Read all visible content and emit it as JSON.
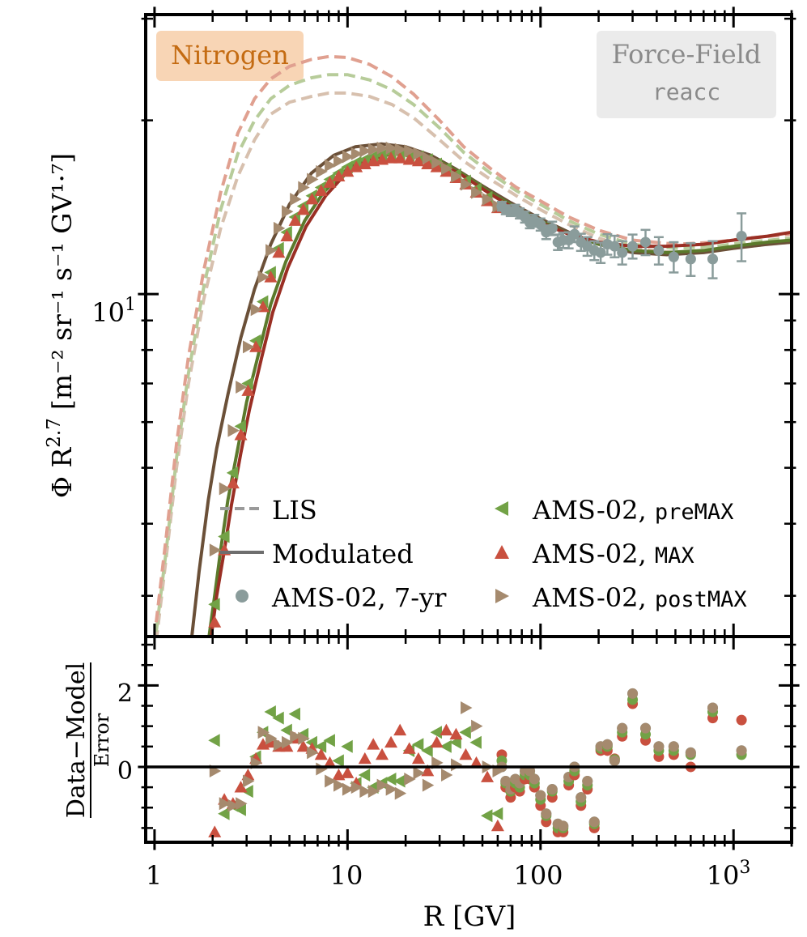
{
  "chart_data": {
    "type": "scatter",
    "element_label": "Nitrogen",
    "model_label": "Force-Field",
    "model_variant": "reacc",
    "upper_panel": {
      "ylabel_main": "Φ R",
      "ylabel_exp": "2.7",
      "ylabel_units": "[m⁻² sr⁻¹ s⁻¹ GV¹·⁷]",
      "yscale": "log",
      "ylim": [
        2.55,
        30.5
      ],
      "ytick_base": "10",
      "ytick_exp": "1"
    },
    "lower_panel": {
      "ylabel_numerator": "Data−Model",
      "ylabel_denominator": "Error",
      "ylim": [
        -1.85,
        3.2
      ],
      "yticks": [
        0,
        2
      ],
      "ytick_labels": [
        "0",
        "2"
      ]
    },
    "xaxis": {
      "xlabel": "R [GV]",
      "xscale": "log",
      "xlim": [
        0.9,
        2000
      ],
      "ticks": [
        {
          "value": 1,
          "label": "1"
        },
        {
          "value": 10,
          "label": "10"
        },
        {
          "value": 100,
          "label": "100"
        }
      ],
      "tick_1000_base": "10",
      "tick_1000_exp": "3"
    },
    "legend": {
      "location": "lower-center",
      "entries": [
        {
          "label": "LIS",
          "style": "dashed-line"
        },
        {
          "label": "Modulated",
          "style": "solid-line"
        },
        {
          "label": "AMS-02, 7-yr",
          "style": "circle"
        },
        {
          "label": "AMS-02, ",
          "mono": "preMAX",
          "style": "triangle-left"
        },
        {
          "label": "AMS-02, ",
          "mono": "MAX",
          "style": "triangle-up"
        },
        {
          "label": "AMS-02, ",
          "mono": "postMAX",
          "style": "triangle-right"
        }
      ]
    },
    "colors": {
      "sevenyr": "#8a9c9b",
      "premax": "#72a246",
      "max": "#c9503f",
      "postmax": "#a58a6e",
      "lis_premax": "#b7cc9a",
      "lis_max": "#e0a090",
      "lis_postmax": "#d7c0ae",
      "mod_premax": "#5b7a2c",
      "mod_max": "#9a2f24",
      "mod_postmax": "#6b5038",
      "element_box": "#f8d5b5",
      "element_text": "#c46b12",
      "model_box": "#ebebeb",
      "model_text": "#8a8a8a"
    },
    "series": [
      {
        "name": "LIS postMAX",
        "kind": "lis",
        "color_key": "lis_postmax",
        "x": [
          1.02,
          1.15,
          1.3,
          1.5,
          1.8,
          2.2,
          2.7,
          3.3,
          4.0,
          5.0,
          6.5,
          8.0,
          10,
          13,
          17,
          22,
          30,
          40,
          55,
          75,
          100,
          140,
          200,
          300,
          500,
          800,
          1200,
          2000
        ],
        "y": [
          2.5,
          3.5,
          5.0,
          7.0,
          9.8,
          13.0,
          16.0,
          18.5,
          20.5,
          21.5,
          22.0,
          22.3,
          22.3,
          22.0,
          21.3,
          20.2,
          18.5,
          17.0,
          15.8,
          14.8,
          14.0,
          13.2,
          12.5,
          12.0,
          11.8,
          11.9,
          12.1,
          12.3
        ]
      },
      {
        "name": "LIS preMAX",
        "kind": "lis",
        "color_key": "lis_premax",
        "x": [
          1.02,
          1.15,
          1.3,
          1.5,
          1.8,
          2.2,
          2.7,
          3.3,
          4.0,
          5.0,
          6.5,
          8.0,
          10,
          13,
          17,
          22,
          30,
          40,
          55,
          75,
          100,
          140,
          200,
          300,
          500,
          800,
          1200,
          2000
        ],
        "y": [
          2.6,
          3.6,
          5.2,
          7.3,
          10.3,
          14.0,
          17.5,
          20.0,
          21.8,
          23.0,
          23.7,
          24.0,
          24.0,
          23.5,
          22.6,
          21.3,
          19.4,
          17.6,
          16.2,
          15.1,
          14.3,
          13.4,
          12.7,
          12.2,
          12.0,
          12.1,
          12.3,
          12.5
        ]
      },
      {
        "name": "LIS MAX",
        "kind": "lis",
        "color_key": "lis_max",
        "x": [
          1.02,
          1.15,
          1.3,
          1.5,
          1.8,
          2.2,
          2.7,
          3.3,
          4.0,
          5.0,
          6.5,
          8.0,
          10,
          13,
          17,
          22,
          30,
          40,
          55,
          75,
          100,
          140,
          200,
          300,
          500,
          800,
          1200,
          2000
        ],
        "y": [
          2.7,
          3.8,
          5.5,
          7.8,
          11.0,
          15.0,
          19.0,
          21.8,
          23.6,
          24.8,
          25.5,
          25.8,
          25.7,
          25.0,
          23.8,
          22.2,
          20.0,
          18.0,
          16.5,
          15.3,
          14.5,
          13.6,
          12.9,
          12.4,
          12.2,
          12.3,
          12.5,
          12.7
        ]
      },
      {
        "name": "Modulated postMAX",
        "kind": "mod",
        "color_key": "mod_postmax",
        "x": [
          1.55,
          1.7,
          1.9,
          2.1,
          2.4,
          2.8,
          3.3,
          4.0,
          5.0,
          6.5,
          8.5,
          11,
          15,
          20,
          27,
          36,
          50,
          70,
          100,
          140,
          200,
          300,
          450,
          700,
          1000,
          1500,
          2000
        ],
        "y": [
          2.5,
          3.3,
          4.4,
          5.4,
          6.7,
          8.4,
          10.2,
          12.2,
          14.3,
          16.2,
          17.4,
          18.0,
          18.2,
          18.0,
          17.4,
          16.5,
          15.4,
          14.4,
          13.5,
          12.8,
          12.2,
          11.8,
          11.7,
          11.8,
          12.0,
          12.2,
          12.3
        ]
      },
      {
        "name": "Modulated preMAX",
        "kind": "mod",
        "color_key": "mod_premax",
        "x": [
          1.9,
          2.05,
          2.2,
          2.4,
          2.7,
          3.0,
          3.5,
          4.0,
          4.8,
          6.0,
          7.5,
          10,
          13,
          17,
          22,
          30,
          40,
          55,
          75,
          100,
          140,
          200,
          300,
          450,
          700,
          1000,
          1500,
          2000
        ],
        "y": [
          2.5,
          3.0,
          3.6,
          4.4,
          5.4,
          6.5,
          8.0,
          9.6,
          11.4,
          13.4,
          15.0,
          16.5,
          17.3,
          17.7,
          17.6,
          17.0,
          16.1,
          15.0,
          14.1,
          13.4,
          12.7,
          12.2,
          11.9,
          11.8,
          11.9,
          12.1,
          12.3,
          12.4
        ]
      },
      {
        "name": "Modulated MAX",
        "kind": "mod",
        "color_key": "mod_max",
        "x": [
          1.95,
          2.1,
          2.3,
          2.5,
          2.8,
          3.1,
          3.6,
          4.1,
          4.9,
          6.1,
          7.7,
          10,
          13,
          17,
          22,
          30,
          40,
          55,
          75,
          100,
          140,
          200,
          300,
          450,
          700,
          1000,
          1500,
          2000
        ],
        "y": [
          2.5,
          3.0,
          3.6,
          4.3,
          5.3,
          6.3,
          7.8,
          9.3,
          11.1,
          13.1,
          14.8,
          16.3,
          17.1,
          17.5,
          17.4,
          16.9,
          16.0,
          14.9,
          14.0,
          13.3,
          12.7,
          12.3,
          12.1,
          12.1,
          12.2,
          12.4,
          12.6,
          12.8
        ]
      },
      {
        "name": "AMS-02, preMAX",
        "kind": "points",
        "marker": "triangle-left",
        "color_key": "premax",
        "x": [
          2.05,
          2.3,
          2.55,
          2.8,
          3.05,
          3.35,
          3.65,
          4.0,
          4.4,
          4.85,
          5.35,
          5.9,
          6.55,
          7.3,
          8.1,
          9.0,
          10.0,
          11.1,
          12.3,
          13.6,
          15.1,
          16.8,
          18.7,
          20.9,
          23.3,
          26.0,
          29.0,
          32.5,
          36.5,
          41.0,
          46.5,
          53.0,
          60.0
        ],
        "y": [
          2.9,
          3.8,
          4.9,
          5.9,
          7.0,
          8.3,
          9.7,
          10.9,
          12.0,
          12.8,
          13.6,
          14.2,
          14.8,
          15.3,
          15.8,
          16.2,
          16.6,
          16.9,
          17.1,
          17.3,
          17.4,
          17.5,
          17.5,
          17.4,
          17.3,
          17.1,
          16.8,
          16.5,
          16.1,
          15.7,
          15.2,
          14.7,
          14.2
        ],
        "resid": [
          0.65,
          -1.15,
          -0.95,
          -1.05,
          -0.6,
          0.25,
          0.85,
          1.35,
          1.2,
          0.9,
          1.3,
          0.8,
          0.6,
          0.5,
          0.65,
          0.15,
          0.5,
          -0.4,
          -0.2,
          -0.5,
          -0.4,
          -0.3,
          -0.35,
          0.4,
          0.55,
          0.4,
          0.85,
          0.5,
          0.6,
          0.85,
          0.6,
          -1.2,
          -1.15
        ]
      },
      {
        "name": "AMS-02, MAX",
        "kind": "points",
        "marker": "triangle-up",
        "color_key": "max",
        "x": [
          2.05,
          2.3,
          2.55,
          2.8,
          3.05,
          3.35,
          3.65,
          4.0,
          4.4,
          4.85,
          5.35,
          5.9,
          6.55,
          7.3,
          8.1,
          9.0,
          10.0,
          11.1,
          12.3,
          13.6,
          15.1,
          16.8,
          18.7,
          20.9,
          23.3,
          26.0,
          29.0,
          32.5,
          36.5,
          41.0,
          46.5,
          53.0,
          60.0
        ],
        "y": [
          2.7,
          3.6,
          4.7,
          5.7,
          6.8,
          8.1,
          9.5,
          10.7,
          11.8,
          12.6,
          13.4,
          14.0,
          14.6,
          15.1,
          15.6,
          16.0,
          16.3,
          16.6,
          16.8,
          17.0,
          17.1,
          17.2,
          17.2,
          17.1,
          17.0,
          16.8,
          16.6,
          16.3,
          15.9,
          15.5,
          15.0,
          14.5,
          14.1
        ],
        "resid": [
          -1.6,
          -0.8,
          -0.9,
          -0.5,
          -0.2,
          0.2,
          0.55,
          0.6,
          0.5,
          0.5,
          0.7,
          0.5,
          0.45,
          0.3,
          0.1,
          -0.2,
          -0.15,
          -0.4,
          0.2,
          0.55,
          0.3,
          0.6,
          0.9,
          0.45,
          0.2,
          -0.1,
          0.6,
          0.9,
          0.8,
          0.3,
          0.1,
          -0.25,
          -1.45
        ]
      },
      {
        "name": "AMS-02, postMAX",
        "kind": "points",
        "marker": "triangle-right",
        "color_key": "postmax",
        "x": [
          2.05,
          2.3,
          2.55,
          2.8,
          3.05,
          3.35,
          3.65,
          4.0,
          4.4,
          4.85,
          5.35,
          5.9,
          6.55,
          7.3,
          8.1,
          9.0,
          10.0,
          11.1,
          12.3,
          13.6,
          15.1,
          16.8,
          18.7,
          20.9,
          23.3,
          26.0,
          29.0,
          32.5,
          36.5,
          41.0,
          46.5,
          53.0,
          60.0
        ],
        "y": [
          3.6,
          4.6,
          5.8,
          6.9,
          8.1,
          9.4,
          10.7,
          11.9,
          13.0,
          13.9,
          14.6,
          15.3,
          15.8,
          16.3,
          16.7,
          17.0,
          17.3,
          17.5,
          17.7,
          17.8,
          17.9,
          17.9,
          17.8,
          17.7,
          17.5,
          17.2,
          16.9,
          16.5,
          16.0,
          15.5,
          15.0,
          14.6,
          14.2
        ],
        "resid": [
          -0.1,
          -0.9,
          -0.95,
          -0.9,
          -0.35,
          0.1,
          0.85,
          0.7,
          0.55,
          0.6,
          0.75,
          0.7,
          0.35,
          -0.05,
          -0.35,
          -0.45,
          -0.55,
          -0.5,
          -0.6,
          -0.6,
          -0.45,
          -0.55,
          -0.65,
          -0.3,
          -0.15,
          -0.45,
          0.1,
          -0.2,
          0.05,
          1.45,
          1.0,
          0.0,
          -0.1
        ]
      },
      {
        "name": "AMS-02, 7-yr",
        "kind": "points",
        "marker": "circle",
        "color_key": "sevenyr",
        "x": [
          63,
          66,
          70,
          74,
          78,
          83,
          88,
          93,
          100,
          107,
          115,
          123,
          131,
          140,
          150,
          162,
          175,
          190,
          205,
          222,
          242,
          265,
          300,
          350,
          410,
          490,
          600,
          780,
          1100
        ],
        "y": [
          14.2,
          14.0,
          13.9,
          14.0,
          13.8,
          13.6,
          13.3,
          13.4,
          13.2,
          12.8,
          13.0,
          12.3,
          12.4,
          12.4,
          12.7,
          12.3,
          12.1,
          11.9,
          11.8,
          12.2,
          12.1,
          11.8,
          12.1,
          12.3,
          11.9,
          11.6,
          11.5,
          11.5,
          12.6
        ],
        "resid": [
          0.0,
          -0.35,
          -0.55,
          -0.3,
          -0.4,
          -0.1,
          -0.1,
          -0.3,
          -0.7,
          -1.15,
          -0.55,
          -1.4,
          -1.45,
          -0.25,
          0.0,
          -0.75,
          -0.35,
          -1.35,
          0.5,
          0.55,
          0.15,
          0.95,
          1.8,
          0.95,
          0.5,
          0.5,
          0.35,
          1.45,
          0.4
        ]
      }
    ],
    "sevenyr_errors": [
      0.25,
      0.25,
      0.25,
      0.28,
      0.28,
      0.3,
      0.3,
      0.32,
      0.32,
      0.35,
      0.35,
      0.38,
      0.38,
      0.4,
      0.4,
      0.42,
      0.45,
      0.45,
      0.48,
      0.5,
      0.52,
      0.55,
      0.58,
      0.62,
      0.65,
      0.7,
      0.75,
      0.85,
      1.2
    ],
    "max_resid_7yr": [
      0.3,
      -0.5,
      -0.75,
      -0.5,
      -0.6,
      -0.3,
      -0.3,
      -0.5,
      -0.95,
      -1.35,
      -0.75,
      -1.6,
      -1.6,
      -0.45,
      -0.2,
      -0.95,
      -0.55,
      -1.5,
      0.4,
      0.4,
      0.2,
      0.75,
      1.55,
      0.65,
      0.25,
      0.3,
      0.0,
      1.2,
      1.15
    ],
    "premax_resid_7yr": [
      0.15,
      -0.4,
      -0.6,
      -0.4,
      -0.5,
      -0.2,
      -0.2,
      -0.4,
      -0.8,
      -1.2,
      -0.6,
      -1.5,
      -1.5,
      -0.35,
      -0.1,
      -0.85,
      -0.45,
      -1.4,
      0.45,
      0.5,
      0.18,
      0.85,
      1.65,
      0.8,
      0.4,
      0.4,
      0.3,
      1.35,
      0.3
    ]
  }
}
